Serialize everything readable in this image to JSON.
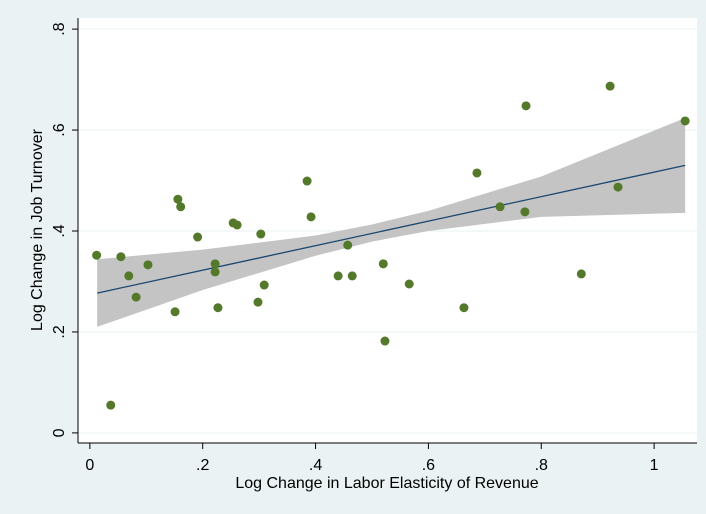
{
  "chart_data": {
    "type": "scatter",
    "xlabel": "Log Change in Labor Elasticity of Revenue",
    "ylabel": "Log Change in Job Turnover",
    "xlim": [
      -0.021,
      1.076
    ],
    "ylim": [
      -0.02,
      0.822
    ],
    "xticks": [
      0,
      {
        "value": 0.2,
        "label": ".2"
      },
      {
        "value": 0.4,
        "label": ".4"
      },
      {
        "value": 0.6,
        "label": ".6"
      },
      {
        "value": 0.8,
        "label": ".8"
      },
      1
    ],
    "yticks": [
      0,
      {
        "value": 0.2,
        "label": ".2"
      },
      {
        "value": 0.4,
        "label": ".4"
      },
      {
        "value": 0.6,
        "label": ".6"
      },
      {
        "value": 0.8,
        "label": ".8"
      }
    ],
    "grid": true,
    "points": {
      "color": "#55792a",
      "x": [
        0.012,
        0.055,
        0.069,
        0.103,
        0.082,
        0.037,
        0.151,
        0.156,
        0.161,
        0.191,
        0.222,
        0.222,
        0.227,
        0.254,
        0.261,
        0.303,
        0.298,
        0.309,
        0.385,
        0.392,
        0.44,
        0.457,
        0.465,
        0.52,
        0.523,
        0.566,
        0.663,
        0.686,
        0.727,
        0.773,
        0.771,
        0.871,
        0.922,
        0.936,
        1.055
      ],
      "y": [
        0.352,
        0.349,
        0.311,
        0.333,
        0.269,
        0.055,
        0.24,
        0.463,
        0.448,
        0.388,
        0.335,
        0.319,
        0.248,
        0.416,
        0.412,
        0.394,
        0.259,
        0.293,
        0.499,
        0.428,
        0.311,
        0.372,
        0.311,
        0.335,
        0.182,
        0.295,
        0.248,
        0.515,
        0.448,
        0.648,
        0.438,
        0.315,
        0.687,
        0.487,
        0.618
      ]
    },
    "fit": {
      "color": "#1a476f",
      "x": [
        0.013,
        1.055
      ],
      "y": [
        0.277,
        0.53
      ]
    },
    "ci": {
      "color": "#c4c4c4",
      "x": [
        0.013,
        0.2,
        0.4,
        0.5,
        0.6,
        0.8,
        1.055
      ],
      "lower": [
        0.21,
        0.283,
        0.351,
        0.379,
        0.4,
        0.428,
        0.436
      ],
      "upper": [
        0.344,
        0.363,
        0.391,
        0.413,
        0.44,
        0.508,
        0.624
      ]
    }
  }
}
